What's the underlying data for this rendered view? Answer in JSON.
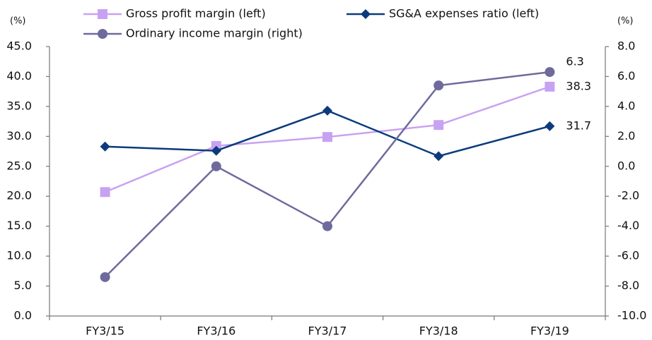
{
  "chart_data": {
    "type": "line",
    "y_unit": "(%)",
    "y2_unit": "(%)",
    "categories": [
      "FY3/15",
      "FY3/16",
      "FY3/17",
      "FY3/18",
      "FY3/19"
    ],
    "series": [
      {
        "name": "Gross profit margin (left)",
        "color": "#c8a2f2",
        "marker": "square",
        "values": [
          20.7,
          28.4,
          29.9,
          31.9,
          38.3
        ]
      },
      {
        "name": "SG&A expenses ratio (left)",
        "color": "#0b3b7c",
        "marker": "diamond",
        "values": [
          28.3,
          27.6,
          34.3,
          26.7,
          31.7
        ]
      },
      {
        "name": "Ordinary income margin (right)",
        "color": "#6e6a9c",
        "marker": "circle",
        "axis": "y2",
        "values": [
          -7.4,
          0.0,
          -4.0,
          5.4,
          6.3
        ]
      }
    ],
    "last_value_labels": true,
    "ylim": [
      0,
      45
    ],
    "yticks": [
      {
        "value": 0,
        "label": "0.0"
      },
      {
        "value": 5,
        "label": "5.0"
      },
      {
        "value": 10,
        "label": "10.0"
      },
      {
        "value": 15,
        "label": "15.0"
      },
      {
        "value": 20,
        "label": "20.0"
      },
      {
        "value": 25,
        "label": "25.0"
      },
      {
        "value": 30,
        "label": "30.0"
      },
      {
        "value": 35,
        "label": "35.0"
      },
      {
        "value": 40,
        "label": "40.0"
      },
      {
        "value": 45,
        "label": "45.0"
      }
    ],
    "y2lim": [
      -10,
      8
    ],
    "y2ticks": [
      {
        "value": -10,
        "label": "-10.0"
      },
      {
        "value": -8,
        "label": "-8.0"
      },
      {
        "value": -6,
        "label": "-6.0"
      },
      {
        "value": -4,
        "label": "-4.0"
      },
      {
        "value": -2,
        "label": "-2.0"
      },
      {
        "value": 0,
        "label": "0.0"
      },
      {
        "value": 2,
        "label": "2.0"
      },
      {
        "value": 4,
        "label": "4.0"
      },
      {
        "value": 6,
        "label": "6.0"
      },
      {
        "value": 8,
        "label": "8.0"
      }
    ],
    "grid": false
  }
}
